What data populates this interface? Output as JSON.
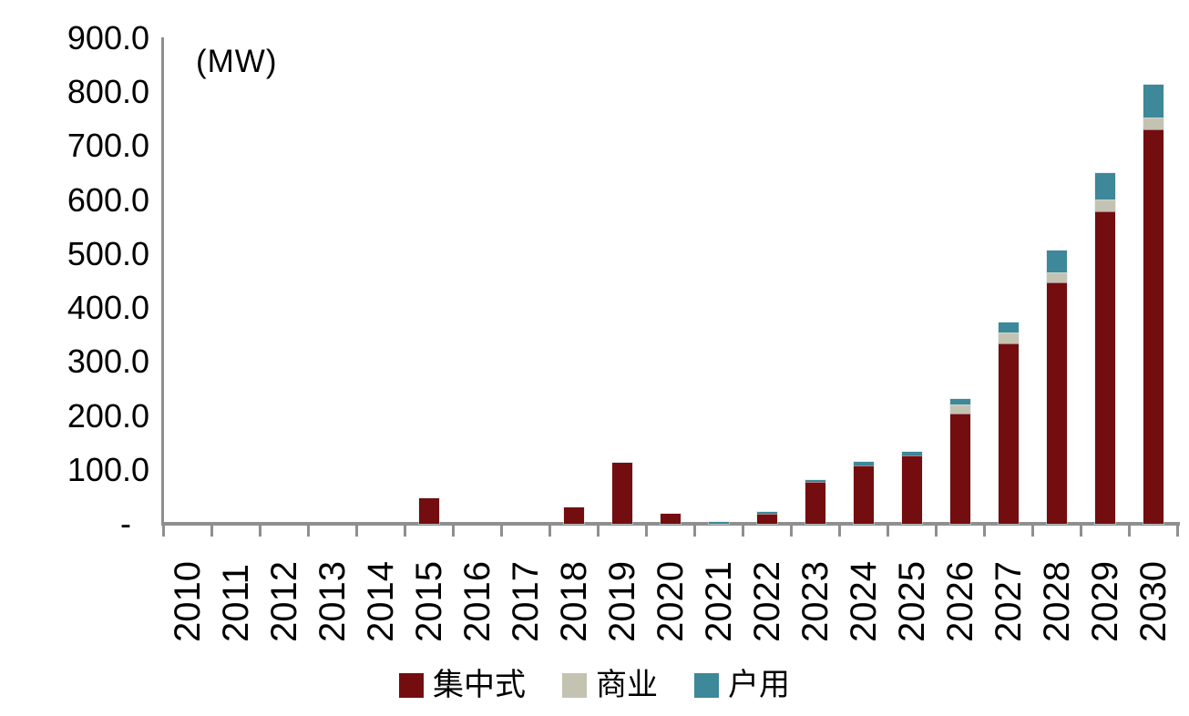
{
  "chart_data": {
    "type": "bar",
    "stacked": true,
    "unit_label": "(MW)",
    "categories": [
      "2010",
      "2011",
      "2012",
      "2013",
      "2014",
      "2015",
      "2016",
      "2017",
      "2018",
      "2019",
      "2020",
      "2021",
      "2022",
      "2023",
      "2024",
      "2025",
      "2026",
      "2027",
      "2028",
      "2029",
      "2030"
    ],
    "series": [
      {
        "name": "集中式",
        "color": "#730d0f",
        "values": [
          0,
          0,
          0,
          0,
          0,
          47,
          0,
          0,
          30,
          113,
          18,
          0,
          19,
          78,
          108,
          126,
          204,
          334,
          447,
          579,
          731
        ]
      },
      {
        "name": "商业",
        "color": "#c4c3b2",
        "values": [
          0,
          0,
          0,
          0,
          0,
          0,
          0,
          0,
          0,
          0,
          0,
          0,
          0,
          0,
          0,
          0,
          17,
          21,
          19,
          22,
          22
        ]
      },
      {
        "name": "户用",
        "color": "#3d8899",
        "values": [
          0,
          0,
          0,
          0,
          0,
          0,
          0,
          0,
          0,
          0,
          0,
          4,
          3,
          3,
          7,
          8,
          10,
          19,
          41,
          49,
          61
        ]
      }
    ],
    "y_axis": {
      "min": 0,
      "max": 900,
      "interval": 100,
      "tick_labels": [
        "900.0",
        "800.0",
        "700.0",
        "600.0",
        "500.0",
        "400.0",
        "300.0",
        "200.0",
        "100.0",
        "-"
      ]
    },
    "legend_position": "bottom",
    "grid": false,
    "axis_color": "#8f8f8f"
  }
}
